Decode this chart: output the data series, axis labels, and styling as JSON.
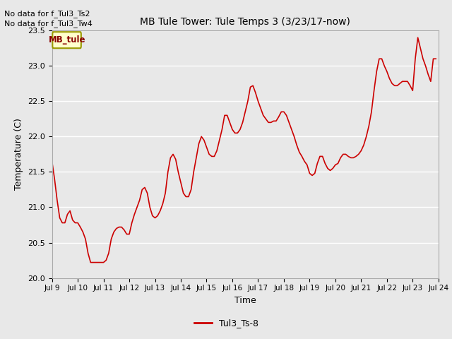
{
  "title": "MB Tule Tower: Tule Temps 3 (3/23/17-now)",
  "xlabel": "Time",
  "ylabel": "Temperature (C)",
  "ylim": [
    20.0,
    23.5
  ],
  "yticks": [
    20.0,
    20.5,
    21.0,
    21.5,
    22.0,
    22.5,
    23.0,
    23.5
  ],
  "xtick_labels": [
    "Jul 9",
    "Jul 10",
    "Jul 11",
    "Jul 12",
    "Jul 13",
    "Jul 14",
    "Jul 15",
    "Jul 16",
    "Jul 17",
    "Jul 18",
    "Jul 19",
    "Jul 20",
    "Jul 21",
    "Jul 22",
    "Jul 23",
    "Jul 24"
  ],
  "line_color": "#cc0000",
  "line_label": "Tul3_Ts-8",
  "legend_box_label": "MB_tule",
  "legend_box_color": "#ffffcc",
  "legend_box_edge": "#999900",
  "no_data_text1": "No data for f_Tul3_Ts2",
  "no_data_text2": "No data for f_Tul3_Tw4",
  "bg_color": "#e8e8e8",
  "x_values": [
    9.0,
    9.1,
    9.2,
    9.3,
    9.4,
    9.5,
    9.6,
    9.7,
    9.8,
    9.9,
    10.0,
    10.1,
    10.2,
    10.3,
    10.4,
    10.5,
    10.6,
    10.7,
    10.8,
    10.9,
    11.0,
    11.1,
    11.2,
    11.3,
    11.4,
    11.5,
    11.6,
    11.7,
    11.8,
    11.9,
    12.0,
    12.1,
    12.2,
    12.3,
    12.4,
    12.5,
    12.6,
    12.7,
    12.8,
    12.9,
    13.0,
    13.1,
    13.2,
    13.3,
    13.4,
    13.5,
    13.6,
    13.7,
    13.8,
    13.9,
    14.0,
    14.1,
    14.2,
    14.3,
    14.4,
    14.5,
    14.6,
    14.7,
    14.8,
    14.9,
    15.0,
    15.1,
    15.2,
    15.3,
    15.4,
    15.5,
    15.6,
    15.7,
    15.8,
    15.9,
    16.0,
    16.1,
    16.2,
    16.3,
    16.4,
    16.5,
    16.6,
    16.7,
    16.8,
    16.9,
    17.0,
    17.1,
    17.2,
    17.3,
    17.4,
    17.5,
    17.6,
    17.7,
    17.8,
    17.9,
    18.0,
    18.1,
    18.2,
    18.3,
    18.4,
    18.5,
    18.6,
    18.7,
    18.8,
    18.9,
    19.0,
    19.1,
    19.2,
    19.3,
    19.4,
    19.5,
    19.6,
    19.7,
    19.8,
    19.9,
    20.0,
    20.1,
    20.2,
    20.3,
    20.4,
    20.5,
    20.6,
    20.7,
    20.8,
    20.9,
    21.0,
    21.1,
    21.2,
    21.3,
    21.4,
    21.5,
    21.6,
    21.7,
    21.8,
    21.9,
    22.0,
    22.1,
    22.2,
    22.3,
    22.4,
    22.5,
    22.6,
    22.7,
    22.8,
    22.9,
    23.0,
    23.1,
    23.2,
    23.3,
    23.4,
    23.5,
    23.6,
    23.7,
    23.8,
    23.9
  ],
  "y_values": [
    21.65,
    21.4,
    21.1,
    20.85,
    20.78,
    20.78,
    20.9,
    20.95,
    20.82,
    20.78,
    20.78,
    20.72,
    20.65,
    20.55,
    20.35,
    20.22,
    20.22,
    20.22,
    20.22,
    20.22,
    20.22,
    20.25,
    20.35,
    20.55,
    20.65,
    20.7,
    20.72,
    20.72,
    20.68,
    20.62,
    20.62,
    20.78,
    20.9,
    21.0,
    21.1,
    21.25,
    21.28,
    21.2,
    21.0,
    20.88,
    20.85,
    20.88,
    20.95,
    21.05,
    21.2,
    21.5,
    21.7,
    21.75,
    21.68,
    21.5,
    21.35,
    21.2,
    21.15,
    21.15,
    21.25,
    21.5,
    21.7,
    21.9,
    22.0,
    21.95,
    21.85,
    21.75,
    21.72,
    21.72,
    21.8,
    21.95,
    22.1,
    22.3,
    22.3,
    22.2,
    22.1,
    22.05,
    22.05,
    22.1,
    22.2,
    22.35,
    22.5,
    22.7,
    22.72,
    22.62,
    22.5,
    22.4,
    22.3,
    22.25,
    22.2,
    22.2,
    22.22,
    22.22,
    22.28,
    22.35,
    22.35,
    22.3,
    22.2,
    22.1,
    22.0,
    21.88,
    21.78,
    21.72,
    21.65,
    21.6,
    21.48,
    21.45,
    21.48,
    21.62,
    21.72,
    21.72,
    21.62,
    21.55,
    21.52,
    21.55,
    21.6,
    21.62,
    21.7,
    21.75,
    21.75,
    21.72,
    21.7,
    21.7,
    21.72,
    21.75,
    21.8,
    21.88,
    22.0,
    22.15,
    22.35,
    22.65,
    22.92,
    23.1,
    23.1,
    23.0,
    22.92,
    22.82,
    22.75,
    22.72,
    22.72,
    22.75,
    22.78,
    22.78,
    22.78,
    22.72,
    22.65,
    23.1,
    23.4,
    23.25,
    23.1,
    23.0,
    22.88,
    22.78,
    23.1,
    23.1
  ]
}
